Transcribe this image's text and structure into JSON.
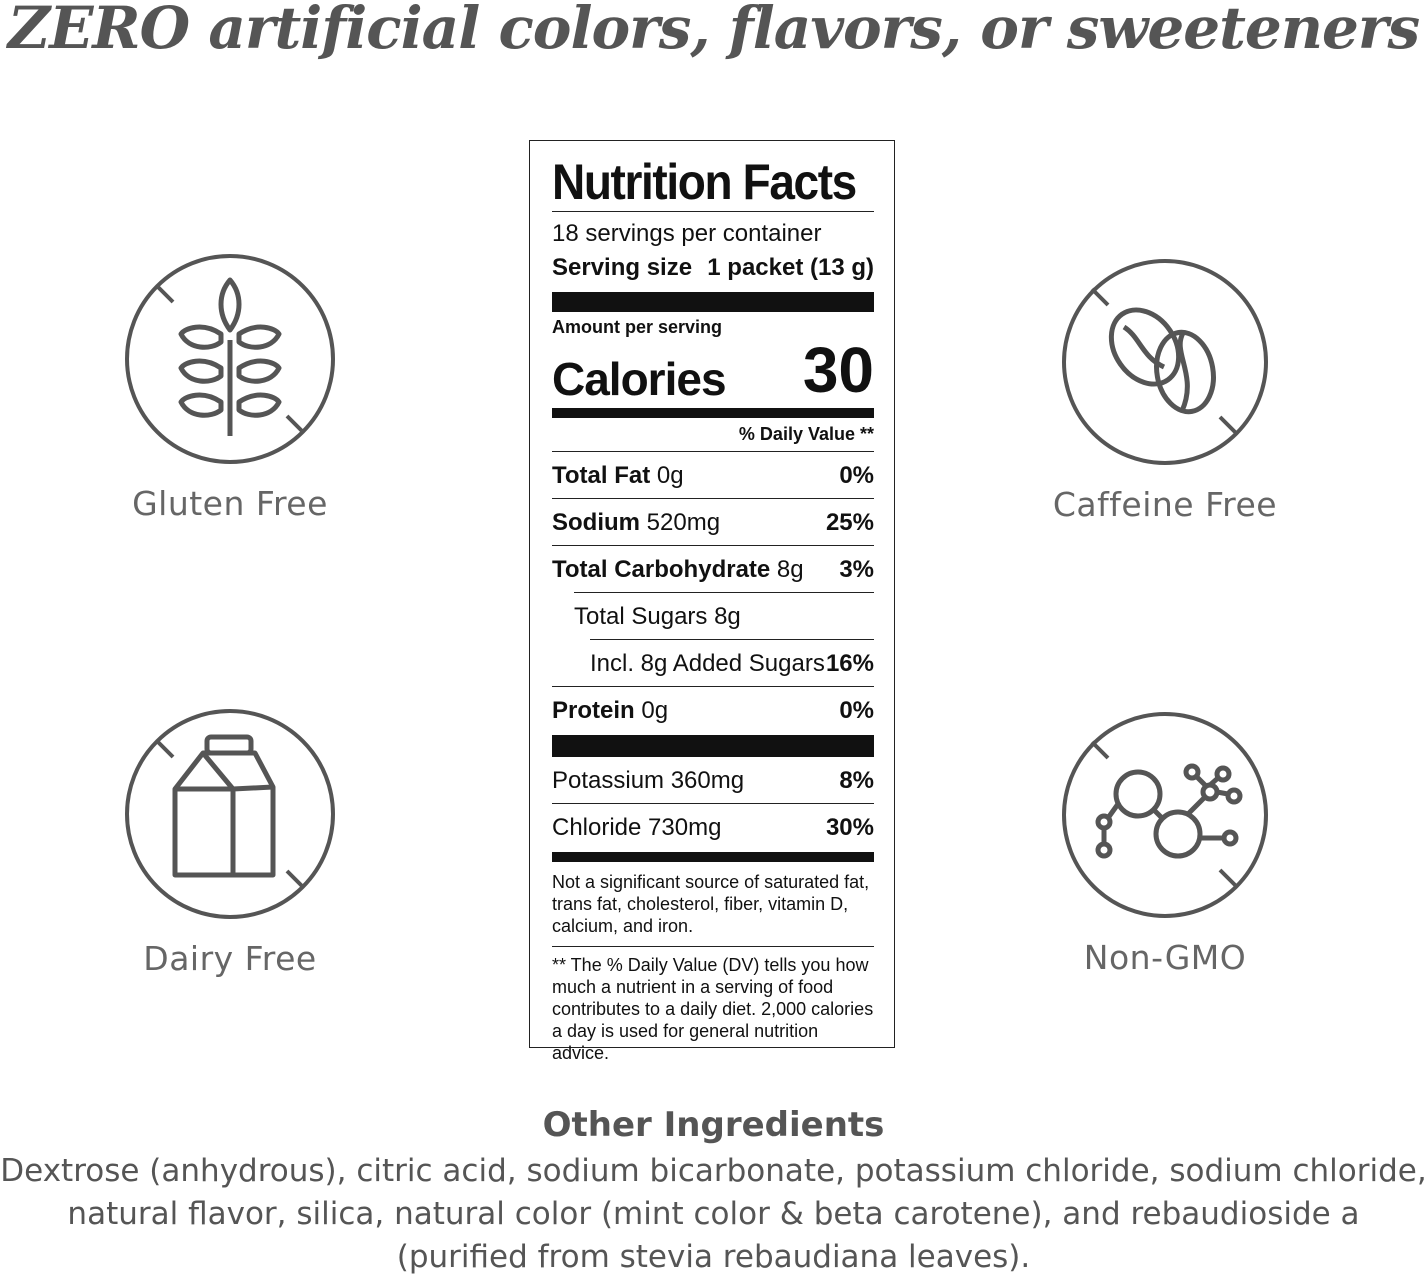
{
  "headline": "ZERO artificial colors, flavors, or sweeteners",
  "badges": {
    "gluten": {
      "label": "Gluten Free",
      "icon": "wheat-crossed-icon"
    },
    "caffeine": {
      "label": "Caffeine Free",
      "icon": "coffee-bean-crossed-icon"
    },
    "dairy": {
      "label": "Dairy Free",
      "icon": "milk-carton-crossed-icon"
    },
    "gmo": {
      "label": "Non-GMO",
      "icon": "molecule-crossed-icon"
    }
  },
  "nutrition": {
    "title": "Nutrition Facts",
    "servings": "18 servings per container",
    "serving_size_label": "Serving size",
    "serving_size_value": "1 packet (13 g)",
    "amount_per_serving": "Amount per serving",
    "calories_label": "Calories",
    "calories_value": "30",
    "dv_header": "% Daily Value **",
    "rows": [
      {
        "name": "Total Fat",
        "amount": "0g",
        "dv": "0%"
      },
      {
        "name": "Sodium",
        "amount": "520mg",
        "dv": "25%"
      },
      {
        "name": "Total Carbohydrate",
        "amount": "8g",
        "dv": "3%"
      },
      {
        "name": "Total Sugars 8g",
        "amount": "",
        "dv": ""
      },
      {
        "name": "Incl. 8g Added Sugars",
        "amount": "",
        "dv": "16%"
      },
      {
        "name": "Protein",
        "amount": "0g",
        "dv": "0%"
      },
      {
        "name": "Potassium 360mg",
        "amount": "",
        "dv": "8%"
      },
      {
        "name": "Chloride 730mg",
        "amount": "",
        "dv": "30%"
      }
    ],
    "note": "Not a significant source of saturated fat, trans fat, cholesterol, fiber, vitamin D, calcium, and iron.",
    "footnote": "** The % Daily Value (DV) tells you how much a nutrient in a serving of food contributes to a daily diet. 2,000 calories a day is used for general nutrition advice."
  },
  "ingredients": {
    "title": "Other Ingredients",
    "text": "Dextrose (anhydrous), citric acid, sodium bicarbonate, potassium chloride, sodium chloride, natural flavor, silica, natural color (mint color & beta carotene), and rebaudioside a (purified from stevia rebaudiana leaves)."
  }
}
